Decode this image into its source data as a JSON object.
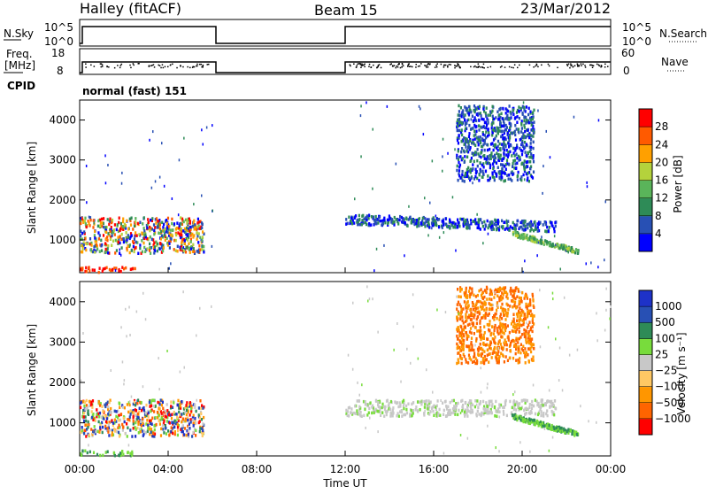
{
  "header": {
    "station": "Halley (fitACF)",
    "beam": "Beam 15",
    "date": "23/Mar/2012"
  },
  "top_panels": {
    "nsky_label": "N.Sky",
    "nsearch_label": "N.Search",
    "freq_label": "Freq.",
    "freq_unit": "[MHz]",
    "nave_label": "Nave",
    "cpid_label": "CPID",
    "cpid_text": "normal (fast) 151",
    "noise_ticks": [
      "10^5",
      "10^0"
    ],
    "noise_ticks_right": [
      "10^5",
      "10^0"
    ],
    "freq_ticks": [
      "18",
      "8"
    ],
    "nave_ticks": [
      "60",
      "0"
    ]
  },
  "x_axis": {
    "label": "Time UT",
    "ticks": [
      "00:00",
      "04:00",
      "08:00",
      "12:00",
      "16:00",
      "20:00",
      "00:00"
    ]
  },
  "colors": {
    "power_scale": [
      "#0000ff",
      "#2850b4",
      "#2e8b57",
      "#5ab45a",
      "#b4d23c",
      "#ffa000",
      "#ff5a00",
      "#ff0000"
    ],
    "velocity_scale": [
      "#ff0000",
      "#ff6400",
      "#ff9600",
      "#ffc864",
      "#c8c8c8",
      "#78dc3c",
      "#2e8b57",
      "#2850b4",
      "#1e32c8"
    ]
  },
  "chart_data": [
    {
      "type": "scatter",
      "name": "power-panel",
      "ylabel": "Slant Range [km]",
      "xlabel": "",
      "xlim": [
        0,
        24
      ],
      "ylim": [
        180,
        4500
      ],
      "yticks": [
        "1000",
        "2000",
        "3000",
        "4000"
      ],
      "colorbar": {
        "label": "Power [dB]",
        "ticks": [
          "28",
          "24",
          "20",
          "16",
          "12",
          "8",
          "4"
        ],
        "range": [
          0,
          32
        ]
      },
      "regions": [
        {
          "t0": 0.0,
          "t1": 5.6,
          "r0": 700,
          "r1": 1600,
          "level": "mixed-high"
        },
        {
          "t0": 0.0,
          "t1": 2.5,
          "r0": 200,
          "r1": 350,
          "level": "high"
        },
        {
          "t0": 12.0,
          "t1": 21.5,
          "r0": 1200,
          "r1": 1600,
          "level": "low"
        },
        {
          "t0": 17.0,
          "t1": 20.5,
          "r0": 2500,
          "r1": 4400,
          "level": "low"
        },
        {
          "t0": 19.5,
          "t1": 22.5,
          "r0": 700,
          "r1": 1200,
          "level": "mid"
        }
      ]
    },
    {
      "type": "scatter",
      "name": "velocity-panel",
      "ylabel": "Slant Range [km]",
      "xlabel": "Time UT",
      "xlim": [
        0,
        24
      ],
      "ylim": [
        180,
        4500
      ],
      "yticks": [
        "1000",
        "2000",
        "3000",
        "4000"
      ],
      "colorbar": {
        "label": "Velocity [m s⁻¹]",
        "ticks": [
          "1000",
          "500",
          "100",
          "25",
          "−25",
          "−100",
          "−500",
          "−1000"
        ]
      },
      "regions": [
        {
          "t0": 0.0,
          "t1": 5.6,
          "r0": 700,
          "r1": 1600,
          "level": "mixed"
        },
        {
          "t0": 0.0,
          "t1": 2.5,
          "r0": 200,
          "r1": 350,
          "level": "green"
        },
        {
          "t0": 12.0,
          "t1": 21.5,
          "r0": 1200,
          "r1": 1600,
          "level": "grey"
        },
        {
          "t0": 17.0,
          "t1": 20.5,
          "r0": 2500,
          "r1": 4400,
          "level": "orange"
        },
        {
          "t0": 19.5,
          "t1": 22.5,
          "r0": 700,
          "r1": 1200,
          "level": "green"
        }
      ]
    }
  ]
}
